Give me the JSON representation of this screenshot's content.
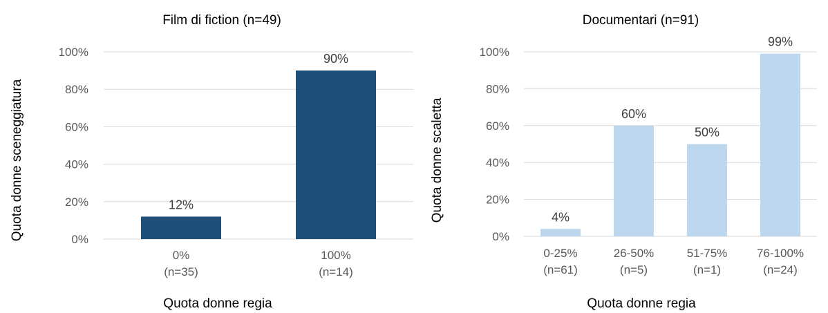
{
  "chart_data": [
    {
      "type": "bar",
      "title": "Film di fiction (n=49)",
      "xlabel": "Quota donne regia",
      "ylabel": "Quota donne sceneggiatura",
      "ylim": [
        0,
        100
      ],
      "yticks": [
        "0%",
        "20%",
        "40%",
        "60%",
        "80%",
        "100%"
      ],
      "categories": [
        [
          "0%",
          "(n=35)"
        ],
        [
          "100%",
          "(n=14)"
        ]
      ],
      "values": [
        12,
        90
      ],
      "labels": [
        "12%",
        "90%"
      ],
      "color": "#1f4e79",
      "grid": true,
      "legend": "none"
    },
    {
      "type": "bar",
      "title": "Documentari (n=91)",
      "xlabel": "Quota donne regia",
      "ylabel": "Quota donne scaletta",
      "ylim": [
        0,
        100
      ],
      "yticks": [
        "0%",
        "20%",
        "40%",
        "60%",
        "80%",
        "100%"
      ],
      "categories": [
        [
          "0-25%",
          "(n=61)"
        ],
        [
          "26-50%",
          "(n=5)"
        ],
        [
          "51-75%",
          "(n=1)"
        ],
        [
          "76-100%",
          "(n=24)"
        ]
      ],
      "values": [
        4,
        60,
        50,
        99
      ],
      "labels": [
        "4%",
        "60%",
        "50%",
        "99%"
      ],
      "color": "#bdd7ee",
      "grid": true,
      "legend": "none"
    }
  ]
}
